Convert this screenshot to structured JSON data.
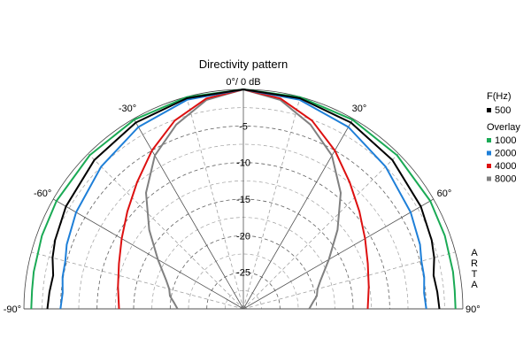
{
  "chart_data": {
    "type": "polar-half",
    "title": "Directivity pattern",
    "radial_unit": "dB",
    "radial_range": [
      -30,
      0
    ],
    "radial_ticks": [
      {
        "value": -5,
        "label": "-5"
      },
      {
        "value": -10,
        "label": "-10"
      },
      {
        "value": -15,
        "label": "-15"
      },
      {
        "value": -20,
        "label": "-20"
      },
      {
        "value": -25,
        "label": "-25"
      }
    ],
    "angle_labels": [
      {
        "angle": 0,
        "label": "0°/ 0 dB"
      },
      {
        "angle": -30,
        "label": "-30°"
      },
      {
        "angle": 30,
        "label": "30°"
      },
      {
        "angle": -60,
        "label": "-60°"
      },
      {
        "angle": 60,
        "label": "60°"
      },
      {
        "angle": -90,
        "label": "-90°"
      },
      {
        "angle": 90,
        "label": "90°"
      }
    ],
    "legend": {
      "header": "F(Hz)",
      "overlay_label": "Overlay",
      "placement": "right"
    },
    "watermark": [
      "A",
      "R",
      "T",
      "A"
    ],
    "series": [
      {
        "name": "500",
        "color": "#000000",
        "group": "main",
        "angles": [
          0,
          15,
          30,
          45,
          60,
          70,
          75,
          80,
          85,
          90
        ],
        "db": [
          0,
          -0.2,
          -0.6,
          -1.2,
          -2.0,
          -2.6,
          -3.0,
          -3.6,
          -3.4,
          -3.2
        ]
      },
      {
        "name": "1000",
        "color": "#1aaa55",
        "group": "overlay",
        "angles": [
          0,
          15,
          30,
          45,
          60,
          70,
          80,
          85,
          90
        ],
        "db": [
          0,
          -0.05,
          -0.15,
          -0.3,
          -0.5,
          -0.7,
          -0.9,
          -1.0,
          -1.0
        ]
      },
      {
        "name": "2000",
        "color": "#1e7fd8",
        "group": "overlay",
        "angles": [
          0,
          15,
          30,
          45,
          60,
          70,
          75,
          80,
          85,
          90
        ],
        "db": [
          0,
          -0.4,
          -1.3,
          -2.5,
          -3.6,
          -4.3,
          -4.8,
          -4.9,
          -5.2,
          -5.0
        ]
      },
      {
        "name": "4000",
        "color": "#dd1010",
        "group": "overlay",
        "angles": [
          0,
          10,
          20,
          30,
          40,
          50,
          60,
          70,
          80,
          90
        ],
        "db": [
          0,
          -0.8,
          -2.6,
          -5.0,
          -7.4,
          -9.3,
          -10.8,
          -11.9,
          -12.6,
          -13.0
        ]
      },
      {
        "name": "8000",
        "color": "#808080",
        "group": "overlay",
        "angles": [
          0,
          10,
          20,
          30,
          40,
          50,
          60,
          70,
          75,
          80,
          85,
          90
        ],
        "db": [
          0,
          -1.0,
          -3.2,
          -5.8,
          -9.3,
          -13.2,
          -16.5,
          -18.8,
          -19.5,
          -19.8,
          -20.5,
          -21.0
        ]
      }
    ]
  }
}
